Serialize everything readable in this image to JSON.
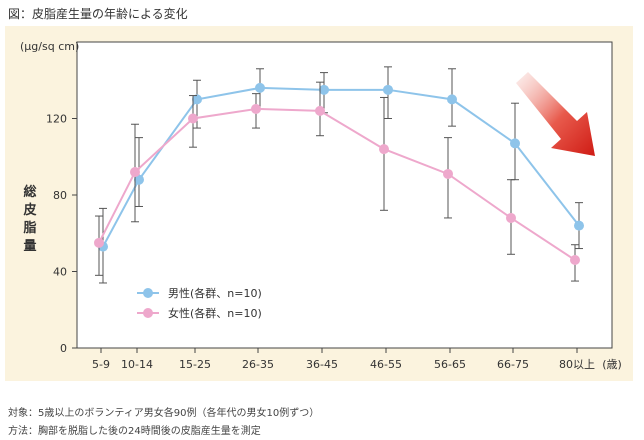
{
  "header": {
    "title": "図：皮脂産生量の年齢による変化"
  },
  "chart_data": {
    "type": "line",
    "title": "図：皮脂産生量の年齢による変化",
    "unit_label": "(μg/sq cm)",
    "ylabel": "総皮脂量",
    "xlabel": "",
    "x_unit": "(歳)",
    "categories": [
      "5-9",
      "10-14",
      "15-25",
      "26-35",
      "36-45",
      "46-55",
      "56-65",
      "66-75",
      "80以上"
    ],
    "ylim": [
      0,
      160
    ],
    "yticks": [
      "0",
      "40",
      "80",
      "120"
    ],
    "series": [
      {
        "name": "男性(各群、n=10)",
        "color": "#8ec4ea",
        "values": [
          53,
          88,
          130,
          136,
          135,
          135,
          130,
          107,
          64
        ],
        "err_low": [
          34,
          74,
          115,
          125,
          123,
          120,
          116,
          88,
          52
        ],
        "err_high": [
          73,
          110,
          140,
          146,
          144,
          147,
          146,
          128,
          76
        ]
      },
      {
        "name": "女性(各群、n=10)",
        "color": "#eea8cc",
        "values": [
          55,
          92,
          120,
          125,
          124,
          104,
          91,
          68,
          46
        ],
        "err_low": [
          38,
          66,
          105,
          115,
          111,
          72,
          68,
          49,
          35
        ],
        "err_high": [
          69,
          117,
          132,
          133,
          139,
          131,
          110,
          88,
          54
        ]
      }
    ]
  },
  "notes": {
    "subjects": "対象：5歳以上のボランティア男女各90例（各年代の男女10例ずつ）",
    "method": "方法：胸部を脱脂した後の24時間後の皮脂産生量を測定"
  }
}
